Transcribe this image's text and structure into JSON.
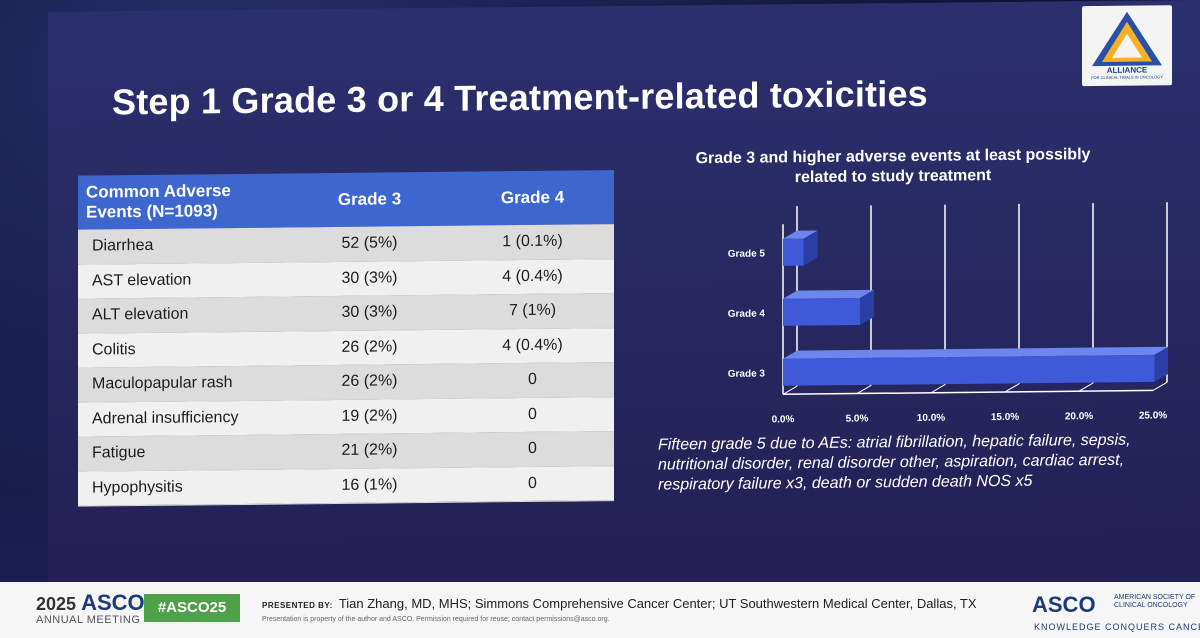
{
  "slide": {
    "title": "Step 1 Grade 3 or 4 Treatment-related toxicities",
    "logo": {
      "name": "ALLIANCE",
      "sub": "FOR CLINICAL TRIALS IN ONCOLOGY"
    }
  },
  "table": {
    "headers": [
      "Common Adverse Events (N=1093)",
      "Grade 3",
      "Grade 4"
    ],
    "rows": [
      [
        "Diarrhea",
        "52 (5%)",
        "1 (0.1%)"
      ],
      [
        "AST elevation",
        "30 (3%)",
        "4 (0.4%)"
      ],
      [
        "ALT elevation",
        "30 (3%)",
        "7 (1%)"
      ],
      [
        "Colitis",
        "26 (2%)",
        "4 (0.4%)"
      ],
      [
        "Maculopapular rash",
        "26 (2%)",
        "0"
      ],
      [
        "Adrenal insufficiency",
        "19 (2%)",
        "0"
      ],
      [
        "Fatigue",
        "21 (2%)",
        "0"
      ],
      [
        "Hypophysitis",
        "16 (1%)",
        "0"
      ]
    ]
  },
  "chart_data": {
    "type": "bar",
    "orientation": "horizontal",
    "title": "Grade 3 and higher adverse events at least possibly related to study treatment",
    "categories": [
      "Grade 5",
      "Grade 4",
      "Grade 3"
    ],
    "values": [
      1.4,
      5.2,
      25.1
    ],
    "xlim": [
      0,
      25
    ],
    "xticks": [
      "0.0%",
      "5.0%",
      "10.0%",
      "15.0%",
      "20.0%",
      "25.0%"
    ],
    "grid": true,
    "bar_color": "#3e5ad8"
  },
  "note": "Fifteen grade 5 due to AEs: atrial fibrillation, hepatic failure, sepsis, nutritional disorder, renal disorder other, aspiration, cardiac arrest, respiratory failure x3, death or sudden death NOS x5",
  "footer": {
    "year": "2025",
    "asco": "ASCO",
    "annual": "ANNUAL MEETING",
    "hashtag": "#ASCO25",
    "presented_by_label": "PRESENTED BY:",
    "presenter": "Tian Zhang, MD, MHS; Simmons Comprehensive Cancer Center; UT Southwestern Medical Center, Dallas, TX",
    "property": "Presentation is property of the author and ASCO. Permission required for reuse; contact permissions@asco.org.",
    "asco_logo": "ASCO",
    "society": "AMERICAN SOCIETY OF CLINICAL ONCOLOGY",
    "tagline": "KNOWLEDGE CONQUERS CANCER"
  }
}
